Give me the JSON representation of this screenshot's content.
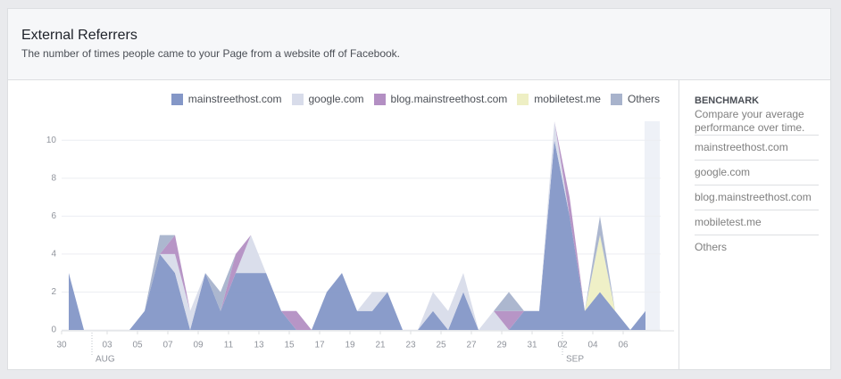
{
  "header": {
    "title": "External Referrers",
    "subtitle": "The number of times people came to your Page from a website off of Facebook."
  },
  "sidebar": {
    "heading": "BENCHMARK",
    "description": "Compare your average performance over time.",
    "items": [
      "mainstreethost.com",
      "google.com",
      "blog.mainstreethost.com",
      "mobiletest.me",
      "Others"
    ]
  },
  "chart_data": {
    "type": "stacked_area",
    "categories": [
      "30",
      null,
      null,
      "03",
      null,
      "05",
      null,
      "07",
      null,
      "09",
      null,
      "11",
      null,
      "13",
      null,
      "15",
      null,
      "17",
      null,
      "19",
      null,
      "21",
      null,
      "23",
      null,
      "25",
      null,
      "27",
      null,
      "29",
      null,
      "31",
      null,
      "02",
      null,
      "04",
      null,
      "06",
      null
    ],
    "months": [
      {
        "label": "AUG",
        "category_index": 2
      },
      {
        "label": "SEP",
        "category_index": 33
      }
    ],
    "series": [
      {
        "name": "mainstreethost.com",
        "color": "#8497c7",
        "values": [
          3,
          0,
          0,
          0,
          0,
          1,
          4,
          3,
          0,
          3,
          1,
          3,
          3,
          3,
          1,
          0,
          0,
          2,
          3,
          1,
          1,
          2,
          0,
          0,
          1,
          0,
          2,
          0,
          0,
          0,
          1,
          1,
          10,
          6,
          1,
          2,
          1,
          0,
          1
        ]
      },
      {
        "name": "google.com",
        "color": "#d8dcea",
        "values": [
          0,
          0,
          0,
          0,
          0,
          0,
          0,
          1,
          1,
          0,
          0,
          0,
          2,
          0,
          0,
          0,
          0,
          0,
          0,
          0,
          1,
          0,
          0,
          0,
          1,
          1,
          1,
          0,
          1,
          0,
          0,
          0,
          1,
          0,
          0,
          0,
          0,
          0,
          0
        ]
      },
      {
        "name": "blog.mainstreethost.com",
        "color": "#b38fc3",
        "values": [
          0,
          0,
          0,
          0,
          0,
          0,
          0,
          1,
          0,
          0,
          0,
          1,
          0,
          0,
          0,
          1,
          0,
          0,
          0,
          0,
          0,
          0,
          0,
          0,
          0,
          0,
          0,
          0,
          0,
          1,
          0,
          0,
          0,
          1,
          0,
          0,
          0,
          0,
          0
        ]
      },
      {
        "name": "mobiletest.me",
        "color": "#eeefc4",
        "values": [
          0,
          0,
          0,
          0,
          0,
          0,
          0,
          0,
          0,
          0,
          0,
          0,
          0,
          0,
          0,
          0,
          0,
          0,
          0,
          0,
          0,
          0,
          0,
          0,
          0,
          0,
          0,
          0,
          0,
          0,
          0,
          0,
          0,
          0,
          0,
          3,
          0,
          0,
          0
        ]
      },
      {
        "name": "Others",
        "color": "#a8b3cc",
        "values": [
          0,
          0,
          0,
          0,
          0,
          0,
          1,
          0,
          0,
          0,
          1,
          0,
          0,
          0,
          0,
          0,
          0,
          0,
          0,
          0,
          0,
          0,
          0,
          0,
          0,
          0,
          0,
          0,
          0,
          1,
          0,
          0,
          0,
          0,
          0,
          1,
          0,
          0,
          0
        ]
      }
    ],
    "ylim": [
      0,
      11
    ],
    "yticks": [
      0,
      2,
      4,
      6,
      8,
      10
    ],
    "grid": true
  }
}
